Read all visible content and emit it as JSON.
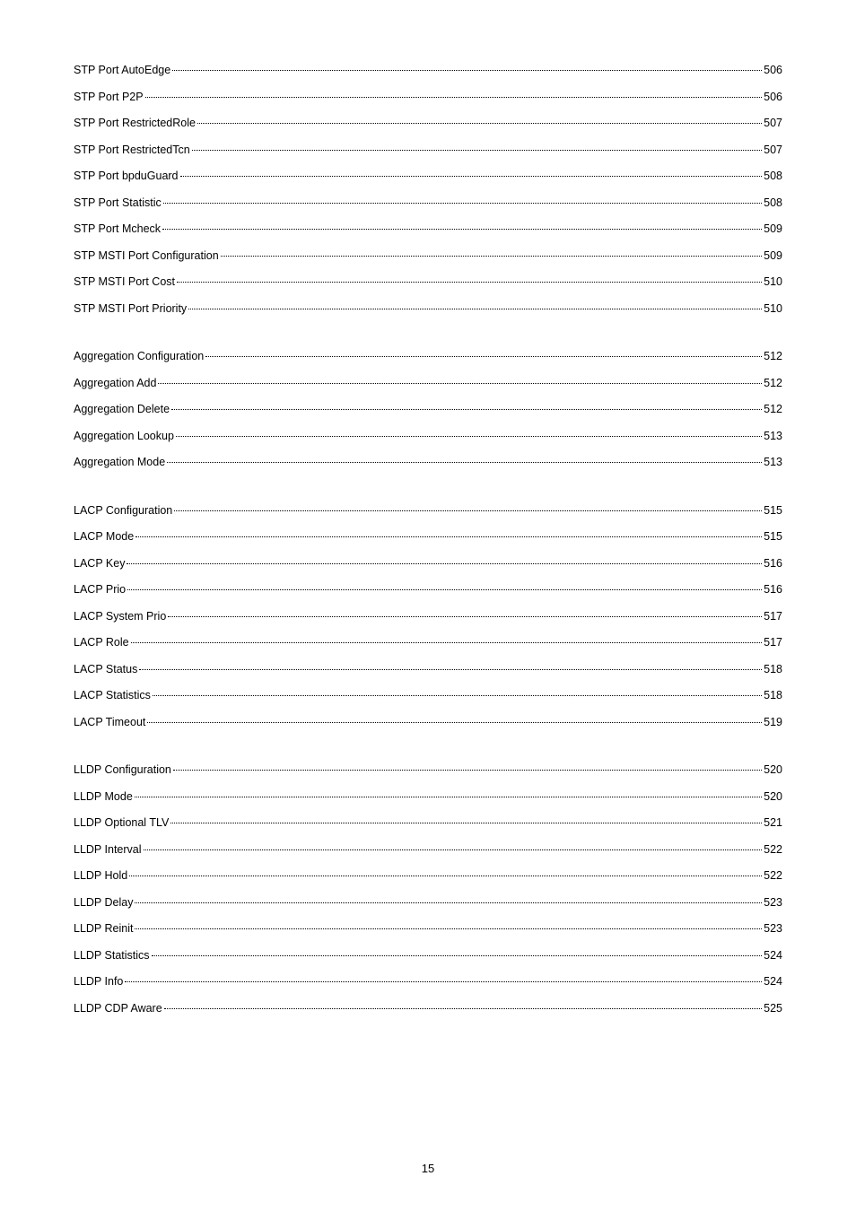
{
  "sections": [
    {
      "entries": [
        {
          "title": "STP Port AutoEdge",
          "page": "506"
        },
        {
          "title": "STP Port P2P",
          "page": "506"
        },
        {
          "title": "STP Port RestrictedRole",
          "page": "507"
        },
        {
          "title": "STP Port RestrictedTcn",
          "page": "507"
        },
        {
          "title": "STP Port bpduGuard",
          "page": "508"
        },
        {
          "title": "STP Port Statistic",
          "page": "508"
        },
        {
          "title": "STP Port Mcheck",
          "page": "509"
        },
        {
          "title": "STP MSTI Port Configuration",
          "page": "509"
        },
        {
          "title": "STP MSTI Port Cost",
          "page": "510"
        },
        {
          "title": "STP MSTI Port Priority",
          "page": "510"
        }
      ]
    },
    {
      "entries": [
        {
          "title": "Aggregation Configuration",
          "page": "512"
        },
        {
          "title": "Aggregation Add",
          "page": "512"
        },
        {
          "title": "Aggregation Delete",
          "page": "512"
        },
        {
          "title": "Aggregation Lookup",
          "page": "513"
        },
        {
          "title": "Aggregation Mode",
          "page": "513"
        }
      ]
    },
    {
      "entries": [
        {
          "title": "LACP Configuration",
          "page": "515"
        },
        {
          "title": "LACP Mode",
          "page": "515"
        },
        {
          "title": "LACP Key",
          "page": "516"
        },
        {
          "title": "LACP Prio",
          "page": "516"
        },
        {
          "title": "LACP System Prio",
          "page": "517"
        },
        {
          "title": "LACP Role",
          "page": "517"
        },
        {
          "title": "LACP Status",
          "page": "518"
        },
        {
          "title": "LACP Statistics",
          "page": "518"
        },
        {
          "title": "LACP Timeout",
          "page": "519"
        }
      ]
    },
    {
      "entries": [
        {
          "title": "LLDP Configuration",
          "page": "520"
        },
        {
          "title": "LLDP Mode",
          "page": "520"
        },
        {
          "title": "LLDP Optional TLV",
          "page": "521"
        },
        {
          "title": "LLDP Interval",
          "page": "522"
        },
        {
          "title": "LLDP Hold",
          "page": "522"
        },
        {
          "title": "LLDP Delay",
          "page": "523"
        },
        {
          "title": "LLDP Reinit",
          "page": "523"
        },
        {
          "title": "LLDP Statistics",
          "page": "524"
        },
        {
          "title": "LLDP Info",
          "page": "524"
        },
        {
          "title": "LLDP CDP Aware",
          "page": "525"
        }
      ]
    }
  ],
  "page_number": "15"
}
